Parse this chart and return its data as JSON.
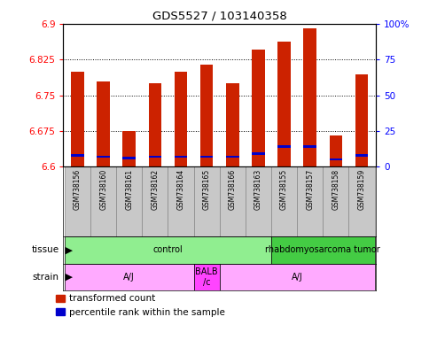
{
  "title": "GDS5527 / 103140358",
  "samples": [
    "GSM738156",
    "GSM738160",
    "GSM738161",
    "GSM738162",
    "GSM738164",
    "GSM738165",
    "GSM738166",
    "GSM738163",
    "GSM738155",
    "GSM738157",
    "GSM738158",
    "GSM738159"
  ],
  "transformed_counts": [
    6.8,
    6.778,
    6.675,
    6.775,
    6.8,
    6.815,
    6.775,
    6.845,
    6.863,
    6.89,
    6.665,
    6.793
  ],
  "percentile_ranks": [
    8.0,
    7.0,
    6.0,
    7.0,
    7.0,
    7.0,
    7.0,
    9.0,
    14.0,
    14.0,
    5.0,
    8.0
  ],
  "y_min": 6.6,
  "y_max": 6.9,
  "y_ticks_left": [
    6.6,
    6.675,
    6.75,
    6.825,
    6.9
  ],
  "y2_ticks_pct": [
    0,
    25,
    50,
    75,
    100
  ],
  "tissue_groups": [
    {
      "label": "control",
      "start": 0,
      "end": 7,
      "color": "#90EE90"
    },
    {
      "label": "rhabdomyosarcoma tumor",
      "start": 8,
      "end": 11,
      "color": "#44CC44"
    }
  ],
  "strain_groups": [
    {
      "label": "A/J",
      "start": 0,
      "end": 4,
      "color": "#FFAAFF"
    },
    {
      "label": "BALB\n/c",
      "start": 5,
      "end": 5,
      "color": "#FF44FF"
    },
    {
      "label": "A/J",
      "start": 6,
      "end": 11,
      "color": "#FFAAFF"
    }
  ],
  "bar_color": "#CC2200",
  "percentile_color": "#0000CC",
  "bar_width": 0.5,
  "sample_box_colors": [
    "#CCCCCC",
    "#DDDDDD"
  ],
  "legend_items": [
    "transformed count",
    "percentile rank within the sample"
  ],
  "tissue_label": "tissue",
  "strain_label": "strain"
}
